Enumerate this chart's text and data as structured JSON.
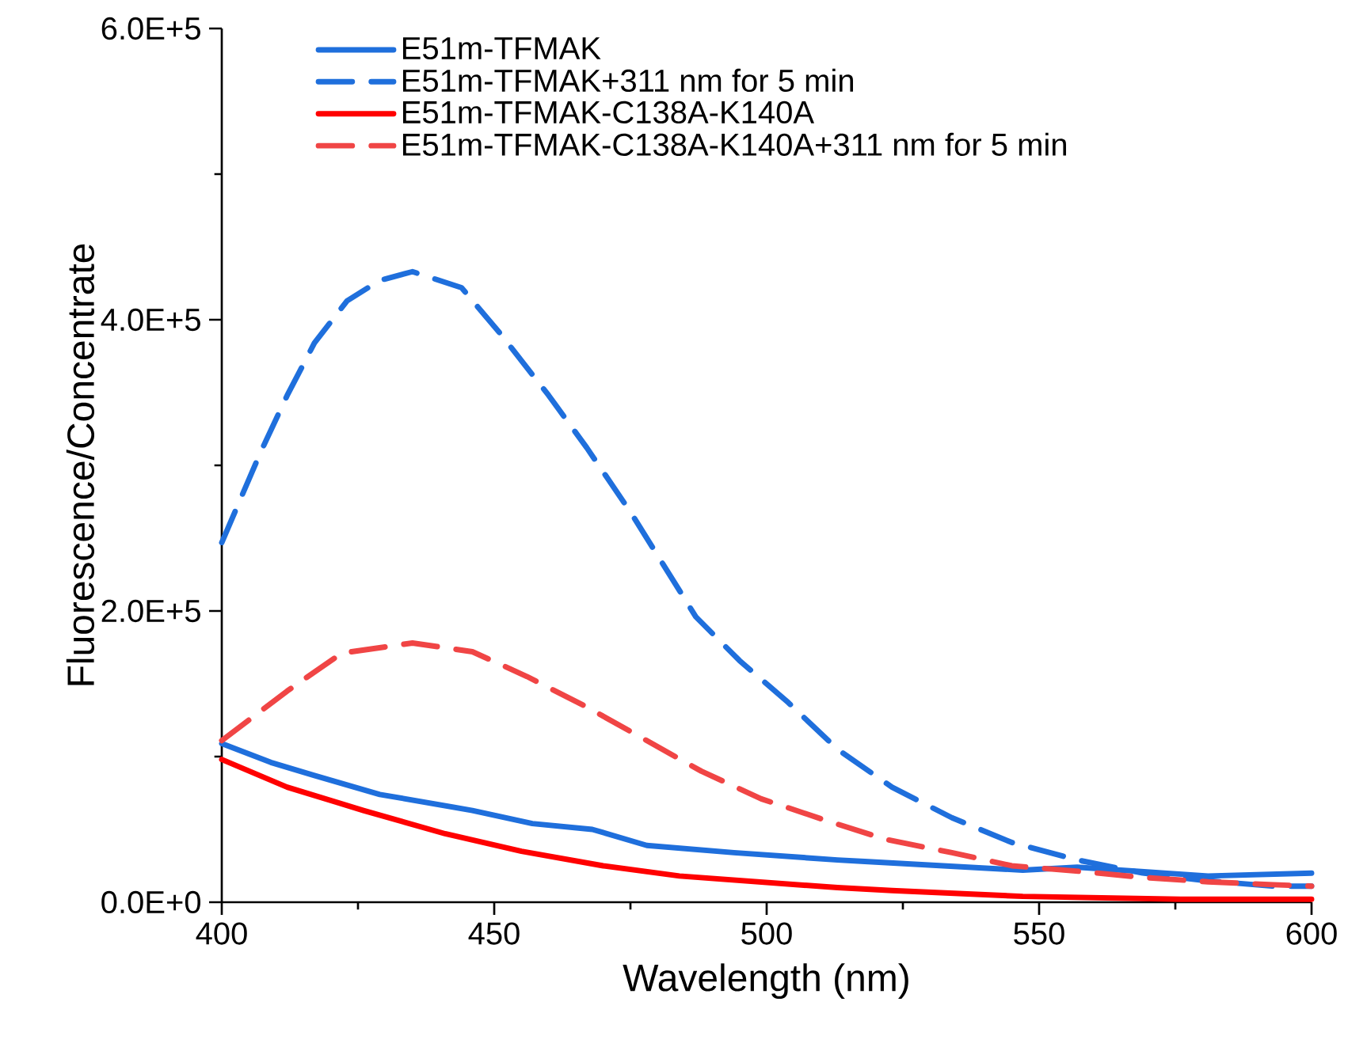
{
  "chart_data": {
    "type": "line",
    "xlabel": "Wavelength (nm)",
    "ylabel": "Fluorescence/Concentrate",
    "xlim": [
      400,
      600
    ],
    "xticks": [
      400,
      450,
      500,
      550,
      600
    ],
    "ylim": [
      0,
      600000
    ],
    "yticks": [
      {
        "value": 0,
        "label": "0.0E+0"
      },
      {
        "value": 200000,
        "label": "2.0E+5"
      },
      {
        "value": 400000,
        "label": "4.0E+5"
      },
      {
        "value": 600000,
        "label": "6.0E+5"
      }
    ],
    "grid": false,
    "legend": "top",
    "marker": "none",
    "series": [
      {
        "name": "E51m-TFMAK",
        "color": "#1f6fdc",
        "line_style": "solid",
        "x": [
          400,
          409,
          417,
          429,
          446,
          457,
          468,
          478,
          494,
          513,
          518,
          547,
          557,
          581,
          600
        ],
        "values": [
          109000,
          96000,
          87000,
          74000,
          63000,
          54000,
          50000,
          39000,
          34000,
          29000,
          28000,
          22000,
          24000,
          18000,
          20000
        ]
      },
      {
        "name": "E51m-TFMAK+311 nm for 5 min",
        "color": "#1f6fdc",
        "line_style": "dashed",
        "x": [
          400,
          407,
          412,
          417,
          423,
          429,
          435,
          444,
          451,
          460,
          467,
          475,
          481,
          487,
          495,
          504,
          513,
          523,
          534,
          545,
          557,
          569,
          580,
          593,
          600
        ],
        "values": [
          247000,
          308000,
          348000,
          384000,
          413000,
          427000,
          433000,
          422000,
          391000,
          348000,
          312000,
          268000,
          232000,
          196000,
          166000,
          137000,
          105000,
          79000,
          58000,
          41000,
          29000,
          20000,
          15000,
          11000,
          11000
        ]
      },
      {
        "name": "E51m-TFMAK-C138A-K140A",
        "color": "#ff0000",
        "line_style": "solid",
        "x": [
          400,
          412,
          426,
          441,
          455,
          470,
          484,
          513,
          523,
          547,
          576,
          600
        ],
        "values": [
          98000,
          79000,
          63000,
          47000,
          35000,
          25000,
          18000,
          10000,
          8000,
          4000,
          2000,
          2000
        ]
      },
      {
        "name": "E51m-TFMAK-C138A-K140A+311 nm for 5 min",
        "color": "#f04545",
        "line_style": "dashed",
        "x": [
          400,
          412,
          422,
          435,
          446,
          456,
          467,
          478,
          488,
          499,
          511,
          522,
          534,
          545,
          558,
          569,
          581,
          593,
          600
        ],
        "values": [
          111000,
          145000,
          171000,
          178000,
          172000,
          155000,
          134000,
          111000,
          90000,
          71000,
          56000,
          43000,
          34000,
          25000,
          21000,
          17000,
          14000,
          12000,
          11000
        ]
      }
    ]
  }
}
